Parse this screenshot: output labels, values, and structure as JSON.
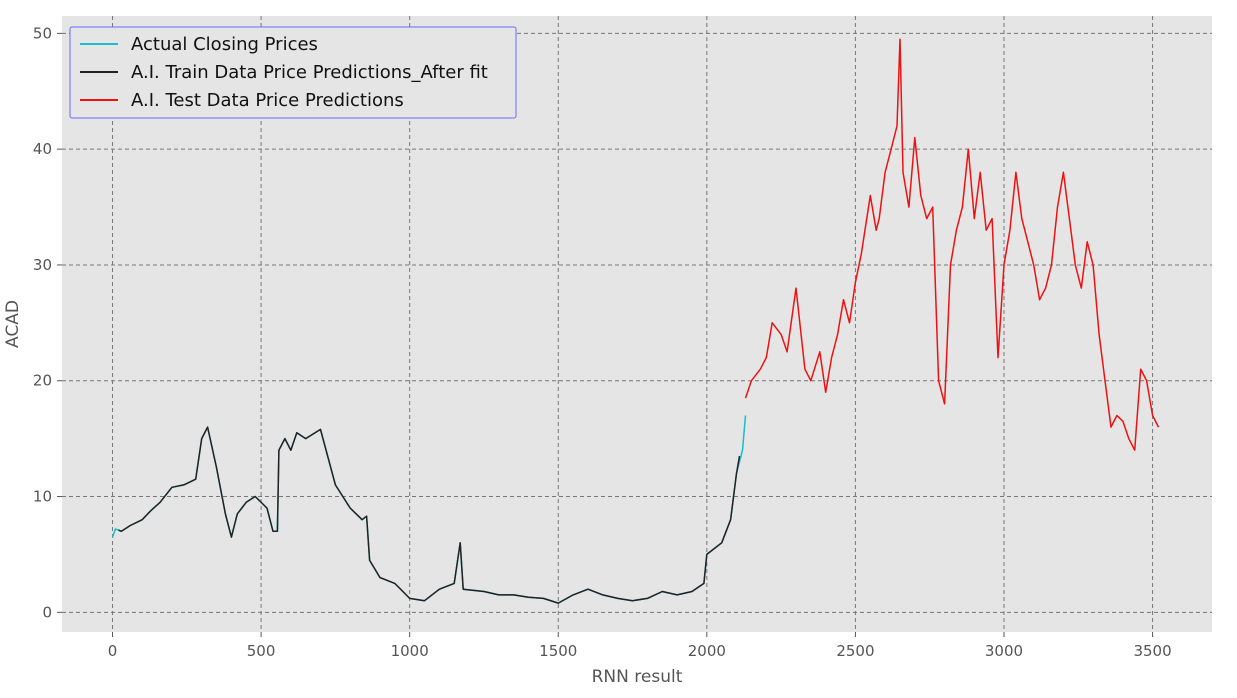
{
  "chart_data": {
    "type": "line",
    "xlabel": "RNN result",
    "ylabel": "ACAD",
    "xlim": [
      -170,
      3700
    ],
    "ylim": [
      -1.7,
      51.5
    ],
    "xticks": [
      0,
      500,
      1000,
      1500,
      2000,
      2500,
      3000,
      3500
    ],
    "yticks": [
      0,
      10,
      20,
      30,
      40,
      50
    ],
    "grid": true,
    "legend_position": "top-left",
    "colors": {
      "plot_background": "#e5e5e5",
      "grid": "#777777",
      "actual": "#17becf",
      "train": "#222222",
      "test": "#ee1111",
      "legend_border": "#6a6aff"
    },
    "series": [
      {
        "name": "Actual Closing Prices",
        "color": "#17becf",
        "x": [
          0,
          10,
          30,
          60,
          100,
          130,
          160,
          200,
          240,
          280,
          300,
          320,
          350,
          380,
          400,
          420,
          450,
          480,
          520,
          540,
          555,
          560,
          580,
          600,
          620,
          650,
          700,
          750,
          800,
          840,
          855,
          865,
          900,
          950,
          1000,
          1050,
          1100,
          1150,
          1170,
          1180,
          1250,
          1300,
          1350,
          1400,
          1450,
          1500,
          1550,
          1600,
          1650,
          1700,
          1750,
          1800,
          1850,
          1900,
          1950,
          1990,
          2000,
          2050,
          2080,
          2100,
          2120,
          2130
        ],
        "y": [
          6.5,
          7.2,
          7.0,
          7.5,
          8.0,
          8.8,
          9.5,
          10.8,
          11.0,
          11.5,
          15.0,
          16.0,
          12.5,
          8.5,
          6.5,
          8.5,
          9.5,
          10.0,
          9.0,
          7.0,
          7.0,
          14.0,
          15.0,
          14.0,
          15.5,
          15.0,
          15.8,
          11.0,
          9.0,
          8.0,
          8.3,
          4.5,
          3.0,
          2.5,
          1.2,
          1.0,
          2.0,
          2.5,
          6.0,
          2.0,
          1.8,
          1.5,
          1.5,
          1.3,
          1.2,
          0.8,
          1.5,
          2.0,
          1.5,
          1.2,
          1.0,
          1.2,
          1.8,
          1.5,
          1.8,
          2.5,
          5.0,
          6.0,
          8.0,
          12.0,
          14.0,
          17.0
        ]
      },
      {
        "name": "A.I. Train Data Price Predictions_After fit",
        "color": "#222222",
        "x": [
          20,
          30,
          60,
          100,
          130,
          160,
          200,
          240,
          280,
          300,
          320,
          350,
          380,
          400,
          420,
          450,
          480,
          520,
          540,
          555,
          560,
          580,
          600,
          620,
          650,
          700,
          750,
          800,
          840,
          855,
          865,
          900,
          950,
          1000,
          1050,
          1100,
          1150,
          1170,
          1180,
          1250,
          1300,
          1350,
          1400,
          1450,
          1500,
          1550,
          1600,
          1650,
          1700,
          1750,
          1800,
          1850,
          1900,
          1950,
          1990,
          2000,
          2050,
          2080,
          2100,
          2110
        ],
        "y": [
          7.1,
          7.0,
          7.5,
          8.0,
          8.8,
          9.5,
          10.8,
          11.0,
          11.5,
          15.0,
          16.0,
          12.5,
          8.5,
          6.5,
          8.5,
          9.5,
          10.0,
          9.0,
          7.0,
          7.0,
          14.0,
          15.0,
          14.0,
          15.5,
          15.0,
          15.8,
          11.0,
          9.0,
          8.0,
          8.3,
          4.5,
          3.0,
          2.5,
          1.2,
          1.0,
          2.0,
          2.5,
          6.0,
          2.0,
          1.8,
          1.5,
          1.5,
          1.3,
          1.2,
          0.8,
          1.5,
          2.0,
          1.5,
          1.2,
          1.0,
          1.2,
          1.8,
          1.5,
          1.8,
          2.5,
          5.0,
          6.0,
          8.0,
          12.0,
          13.5
        ]
      },
      {
        "name": "A.I. Test Data Price Predictions",
        "color": "#ee1111",
        "x": [
          2130,
          2150,
          2180,
          2200,
          2220,
          2250,
          2270,
          2300,
          2330,
          2350,
          2380,
          2400,
          2420,
          2440,
          2460,
          2480,
          2500,
          2520,
          2550,
          2570,
          2580,
          2600,
          2620,
          2640,
          2650,
          2660,
          2680,
          2700,
          2720,
          2740,
          2760,
          2780,
          2800,
          2820,
          2840,
          2860,
          2880,
          2900,
          2920,
          2940,
          2960,
          2980,
          3000,
          3020,
          3040,
          3060,
          3080,
          3100,
          3120,
          3140,
          3160,
          3180,
          3200,
          3220,
          3240,
          3260,
          3280,
          3300,
          3320,
          3340,
          3360,
          3380,
          3400,
          3420,
          3440,
          3460,
          3480,
          3500,
          3520
        ],
        "y": [
          18.5,
          20.0,
          21.0,
          22.0,
          25.0,
          24.0,
          22.5,
          28.0,
          21.0,
          20.0,
          22.5,
          19.0,
          22.0,
          24.0,
          27.0,
          25.0,
          28.5,
          31.0,
          36.0,
          33.0,
          34.0,
          38.0,
          40.0,
          42.0,
          49.5,
          38.0,
          35.0,
          41.0,
          36.0,
          34.0,
          35.0,
          20.0,
          18.0,
          30.0,
          33.0,
          35.0,
          40.0,
          34.0,
          38.0,
          33.0,
          34.0,
          22.0,
          30.0,
          33.0,
          38.0,
          34.0,
          32.0,
          30.0,
          27.0,
          28.0,
          30.0,
          35.0,
          38.0,
          34.0,
          30.0,
          28.0,
          32.0,
          30.0,
          24.0,
          20.0,
          16.0,
          17.0,
          16.5,
          15.0,
          14.0,
          21.0,
          20.0,
          17.0,
          16.0
        ]
      }
    ]
  }
}
